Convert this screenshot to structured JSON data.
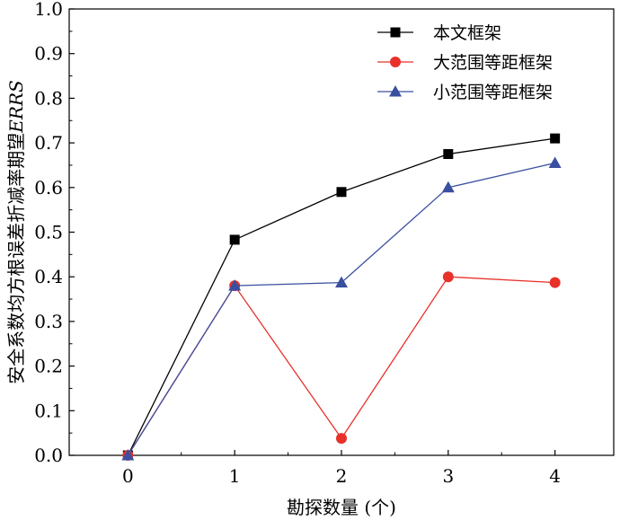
{
  "chart_data": {
    "type": "line",
    "title": "",
    "xlabel": "勘探数量 (个)",
    "ylabel": "安全系数均方根误差折减率期望ERRS",
    "ylabel_prefix": "安全系数均方根误差折减率期望",
    "ylabel_italic": "ERRS",
    "x": [
      0,
      1,
      2,
      3,
      4
    ],
    "x_tick_labels": [
      "0",
      "1",
      "2",
      "3",
      "4"
    ],
    "xlim": [
      -0.55,
      4.55
    ],
    "ylim": [
      0.0,
      1.0
    ],
    "y_tick_labels": [
      "0.0",
      "0.1",
      "0.2",
      "0.3",
      "0.4",
      "0.5",
      "0.6",
      "0.7",
      "0.8",
      "0.9",
      "1.0"
    ],
    "grid": false,
    "legend_position": "top-right",
    "series": [
      {
        "name": "本文框架",
        "values": [
          0.0,
          0.483,
          0.59,
          0.675,
          0.71
        ],
        "color": "#000000",
        "marker": "square"
      },
      {
        "name": "大范围等距框架",
        "values": [
          0.0,
          0.38,
          0.038,
          0.4,
          0.387
        ],
        "color": "#e8312a",
        "marker": "circle"
      },
      {
        "name": "小范围等距框架",
        "values": [
          0.0,
          0.38,
          0.387,
          0.6,
          0.655
        ],
        "color": "#3a4fa0",
        "marker": "triangle"
      }
    ]
  }
}
